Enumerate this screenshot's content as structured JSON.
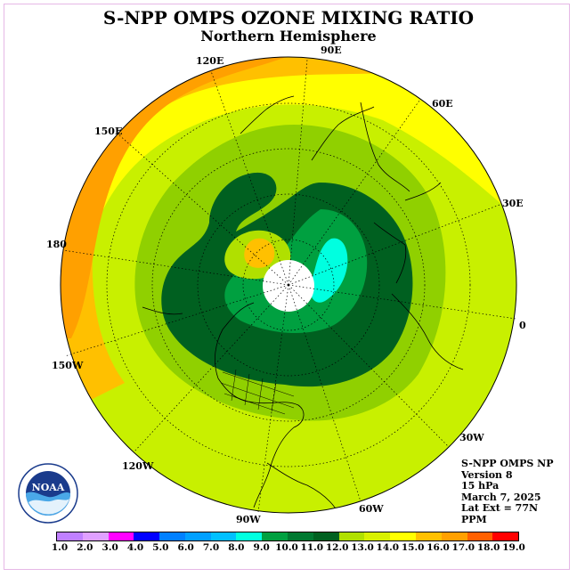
{
  "title": "S-NPP OMPS OZONE MIXING RATIO",
  "subtitle": "Northern Hemisphere",
  "longitude_labels": {
    "lon_90e": "90E",
    "lon_60e": "60E",
    "lon_30e": "30E",
    "lon_0": "0",
    "lon_30w": "30W",
    "lon_60w": "60W",
    "lon_90w": "90W",
    "lon_120w": "120W",
    "lon_150w": "150W",
    "lon_180": "180",
    "lon_150e": "150E",
    "lon_120e": "120E"
  },
  "info": {
    "instrument": "S-NPP OMPS NP",
    "version": "Version 8",
    "level": "15 hPa",
    "date": "March 7, 2025",
    "lat_ext": "Lat Ext = 77N",
    "units": "PPM"
  },
  "logo_text": "NOAA",
  "colorbar": {
    "ticks": [
      "1.0",
      "2.0",
      "3.0",
      "4.0",
      "5.0",
      "6.0",
      "7.0",
      "8.0",
      "9.0",
      "10.0",
      "11.0",
      "12.0",
      "13.0",
      "14.0",
      "15.0",
      "16.0",
      "17.0",
      "18.0",
      "19.0"
    ],
    "colors": [
      "#c080ff",
      "#e0a0ff",
      "#ff00ff",
      "#0000ff",
      "#0080ff",
      "#00a0ff",
      "#00c0ff",
      "#00ffe0",
      "#00a040",
      "#007830",
      "#006020",
      "#b0e000",
      "#d8f000",
      "#ffff00",
      "#ffc000",
      "#ffa000",
      "#ff6000",
      "#ff0000",
      "#996040"
    ]
  }
}
